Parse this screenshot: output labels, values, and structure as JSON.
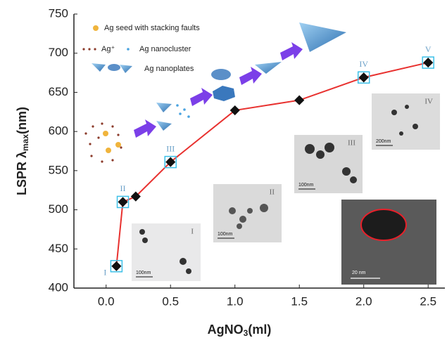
{
  "chart_data": {
    "type": "line",
    "x": [
      0.08,
      0.13,
      0.23,
      0.5,
      1.0,
      1.5,
      2.0,
      2.5
    ],
    "series": [
      {
        "color": "#e8312f",
        "values": [
          428,
          510,
          517,
          561,
          627,
          640,
          669,
          688
        ]
      }
    ],
    "point_labels": [
      "I",
      "II",
      null,
      "III",
      null,
      null,
      "IV",
      "V"
    ],
    "xlim": [
      -0.25,
      2.63
    ],
    "ylim": [
      400,
      750
    ],
    "xticks": [
      {
        "value": 0,
        "label": "0.0"
      },
      0.5,
      {
        "value": 1,
        "label": "1.0"
      },
      1.5,
      {
        "value": 2,
        "label": "2.0"
      },
      2.5
    ],
    "yticks": [
      400,
      450,
      500,
      550,
      600,
      650,
      700,
      750
    ],
    "xlabel": {
      "main": "AgNO",
      "sub": "3",
      "tail": "(ml)"
    },
    "ylabel": {
      "main": "LSPR  λ",
      "sub": "max",
      "tail": "(nm)"
    },
    "schematic_legend": [
      "Ag seed with stacking faults",
      "Ag⁺",
      "Ag nanocluster",
      "Ag nanoplates"
    ],
    "insets": [
      {
        "label": "I",
        "scale_bar": "100nm"
      },
      {
        "label": "II",
        "scale_bar": "100nm"
      },
      {
        "label": "III",
        "scale_bar": "100nm"
      },
      {
        "label": "IV",
        "scale_bar": "200nm"
      }
    ],
    "hrtem_scale_bar": "20 nm"
  }
}
